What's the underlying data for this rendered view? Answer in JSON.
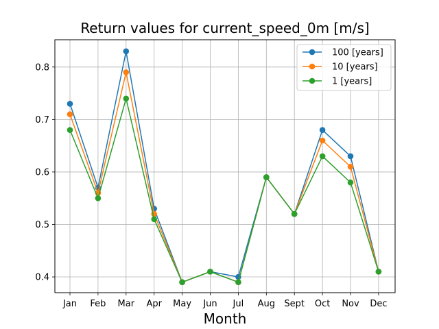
{
  "chart_data": {
    "type": "line",
    "title": "Return values for current_speed_0m [m/s]",
    "xlabel": "Month",
    "ylabel": "",
    "categories": [
      "Jan",
      "Feb",
      "Mar",
      "Apr",
      "May",
      "Jun",
      "Jul",
      "Aug",
      "Sept",
      "Oct",
      "Nov",
      "Dec"
    ],
    "ylim": [
      0.37,
      0.852
    ],
    "yticks": [
      0.4,
      0.5,
      0.6,
      0.7,
      0.8
    ],
    "ytick_labels": [
      "0.4",
      "0.5",
      "0.6",
      "0.7",
      "0.8"
    ],
    "grid": true,
    "legend_position": "top-right",
    "series": [
      {
        "name": "100 [years]",
        "color": "#1f77b4",
        "values": [
          0.73,
          0.57,
          0.83,
          0.53,
          0.39,
          0.41,
          0.4,
          0.59,
          0.52,
          0.68,
          0.63,
          0.41
        ]
      },
      {
        "name": "10 [years]",
        "color": "#ff7f0e",
        "values": [
          0.71,
          0.56,
          0.79,
          0.52,
          0.39,
          0.41,
          0.39,
          0.59,
          0.52,
          0.66,
          0.61,
          0.41
        ]
      },
      {
        "name": "1 [years]",
        "color": "#2ca02c",
        "values": [
          0.68,
          0.55,
          0.74,
          0.51,
          0.39,
          0.41,
          0.39,
          0.59,
          0.52,
          0.63,
          0.58,
          0.41
        ]
      }
    ]
  }
}
